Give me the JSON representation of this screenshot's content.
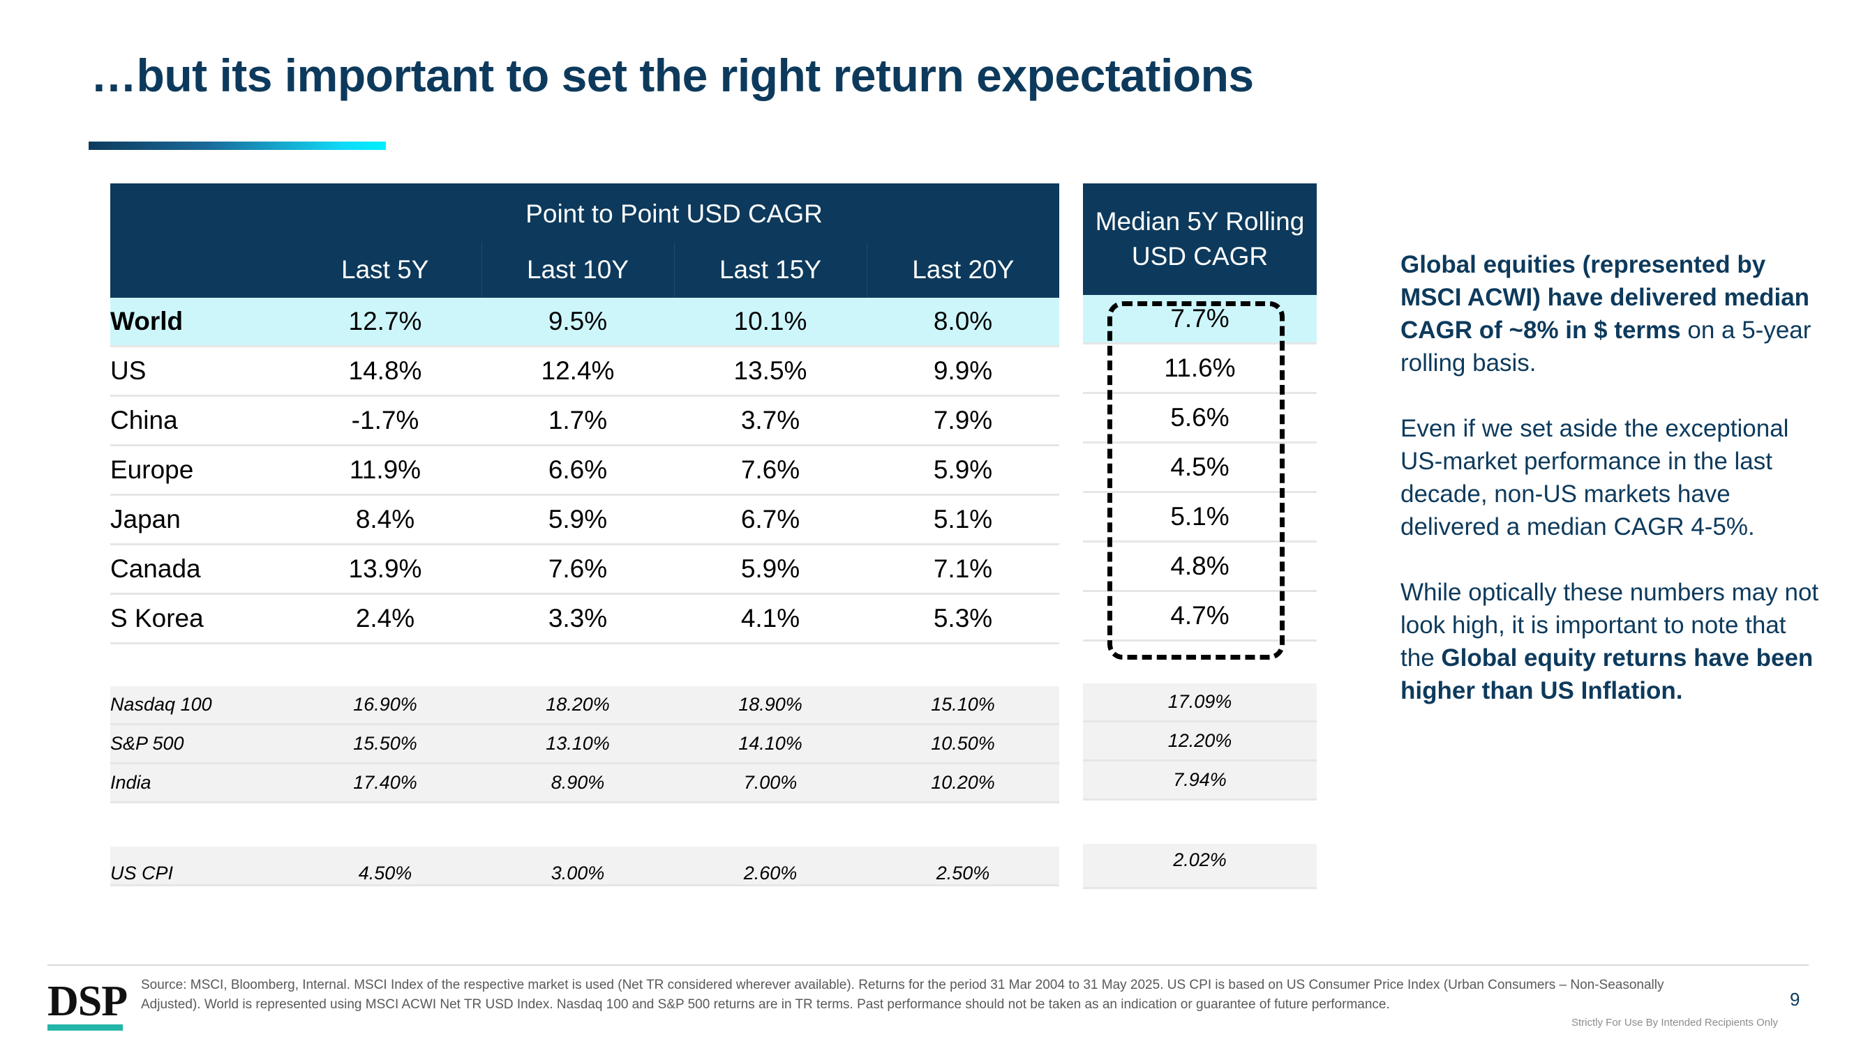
{
  "title": "…but its important to set the right return expectations",
  "table": {
    "group_header": "Point to Point USD CAGR",
    "columns": [
      "Last 5Y",
      "Last 10Y",
      "Last 15Y",
      "Last 20Y"
    ],
    "median_header": "Median 5Y Rolling USD CAGR",
    "rows": [
      {
        "label": "World",
        "values": [
          "12.7%",
          "9.5%",
          "10.1%",
          "8.0%"
        ],
        "median": "7.7%"
      },
      {
        "label": "US",
        "values": [
          "14.8%",
          "12.4%",
          "13.5%",
          "9.9%"
        ],
        "median": "11.6%"
      },
      {
        "label": "China",
        "values": [
          "-1.7%",
          "1.7%",
          "3.7%",
          "7.9%"
        ],
        "median": "5.6%"
      },
      {
        "label": "Europe",
        "values": [
          "11.9%",
          "6.6%",
          "7.6%",
          "5.9%"
        ],
        "median": "4.5%"
      },
      {
        "label": "Japan",
        "values": [
          "8.4%",
          "5.9%",
          "6.7%",
          "5.1%"
        ],
        "median": "5.1%"
      },
      {
        "label": "Canada",
        "values": [
          "13.9%",
          "7.6%",
          "5.9%",
          "7.1%"
        ],
        "median": "4.8%"
      },
      {
        "label": "S Korea",
        "values": [
          "2.4%",
          "3.3%",
          "4.1%",
          "5.3%"
        ],
        "median": "4.7%"
      }
    ],
    "index_rows": [
      {
        "label": "Nasdaq 100",
        "values": [
          "16.90%",
          "18.20%",
          "18.90%",
          "15.10%"
        ],
        "median": "17.09%"
      },
      {
        "label": "S&P 500",
        "values": [
          "15.50%",
          "13.10%",
          "14.10%",
          "10.50%"
        ],
        "median": "12.20%"
      },
      {
        "label": "India",
        "values": [
          "17.40%",
          "8.90%",
          "7.00%",
          "10.20%"
        ],
        "median": "7.94%"
      }
    ],
    "cpi_row": {
      "label": "US CPI",
      "values": [
        "4.50%",
        "3.00%",
        "2.60%",
        "2.50%"
      ],
      "median": "2.02%"
    }
  },
  "commentary": {
    "p1_bold": "Global equities (represented by MSCI ACWI) have delivered median CAGR of ~8% in $ terms",
    "p1_rest": " on a 5-year rolling basis.",
    "p2": "Even if we set aside the exceptional US-market performance in the last decade, non-US markets have delivered a median CAGR 4-5%.",
    "p3_start": "While optically these numbers may not look high, it is important to note that the ",
    "p3_bold": "Global equity returns have been higher than US Inflation."
  },
  "footer": {
    "logo": "DSP",
    "source": "Source: MSCI, Bloomberg, Internal. MSCI Index of the respective market is used (Net TR considered wherever available). Returns for the period 31 Mar 2004 to 31 May 2025. US CPI is based on US Consumer Price Index (Urban Consumers – Non-Seasonally Adjusted). World is represented using MSCI ACWI Net TR USD Index. Nasdaq 100 and S&P 500 returns are in TR terms. Past performance should not be taken as an indication or guarantee of future performance.",
    "page_number": "9",
    "confidential": "Strictly For Use By Intended Recipients Only"
  },
  "colors": {
    "navy": "#0d3a5c",
    "highlight": "#cdf6fb",
    "index_bg": "#f2f2f2",
    "logo_accent": "#25b5a8"
  }
}
